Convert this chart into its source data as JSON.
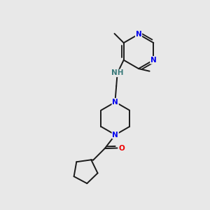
{
  "bg_color": "#e8e8e8",
  "bond_color": "#1a1a1a",
  "N_color": "#0000ee",
  "O_color": "#ee0000",
  "H_color": "#3a7a7a",
  "lw": 1.4,
  "fs": 7.5,
  "figsize": [
    3.0,
    3.0
  ],
  "dpi": 100,
  "xlim": [
    0,
    10
  ],
  "ylim": [
    0,
    10
  ]
}
